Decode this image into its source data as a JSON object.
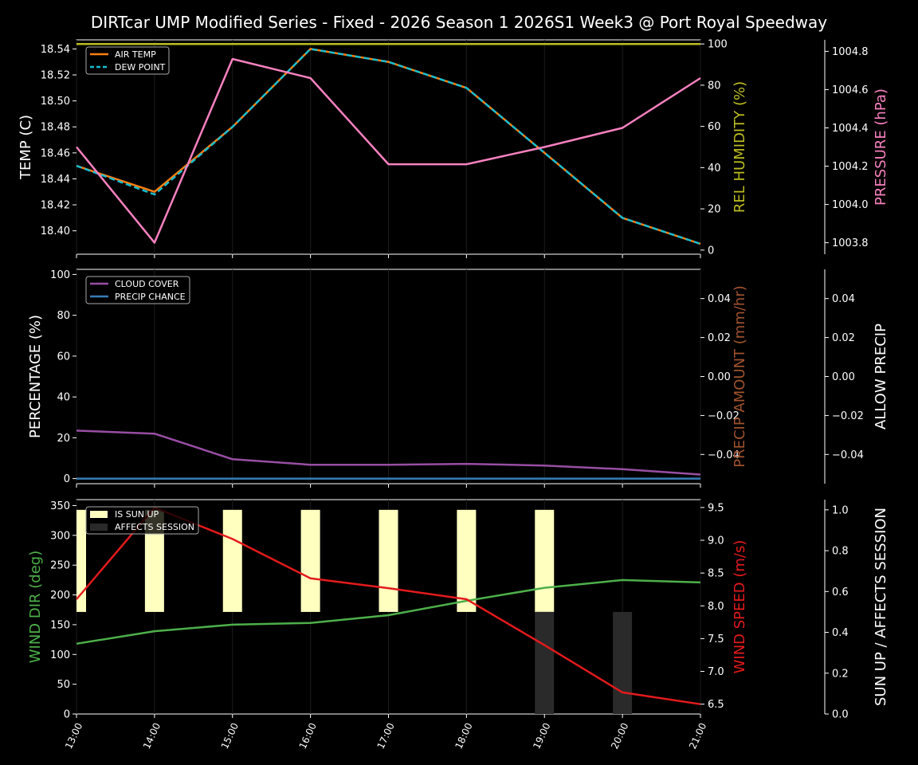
{
  "title": "DIRTcar UMP Modified Series - Fixed - 2026 Season 1 2026S1 Week3 @ Port Royal Speedway",
  "colors": {
    "background": "#000000",
    "foreground": "#ffffff",
    "air_temp": "#ff7f0e",
    "dew_point": "#17becf",
    "humidity": "#bcbd22",
    "pressure": "#f781bf",
    "cloud": "#984ea3",
    "precip_chance": "#377eb8",
    "precip_amount": "#a0522d",
    "wind_dir": "#4daf4a",
    "wind_speed": "#e41a1c",
    "sun_up": "#ffffc0",
    "affects_session": "#2a2a2a"
  },
  "chart_data": [
    {
      "type": "line",
      "panel": "weather",
      "x": [
        "13:00",
        "14:00",
        "15:00",
        "16:00",
        "17:00",
        "18:00",
        "19:00",
        "20:00",
        "21:00"
      ],
      "ylabel": "TEMP (C)",
      "ylabel_right": "REL HUMIDITY (%)",
      "ylabel_far_right": "PRESSURE (hPa)",
      "ylim": [
        18.382,
        18.547
      ],
      "ylim_right": [
        -2,
        102
      ],
      "ylim_far_right": [
        1003.74,
        1004.86
      ],
      "yticks": [
        "18.40",
        "18.42",
        "18.44",
        "18.46",
        "18.48",
        "18.50",
        "18.52",
        "18.54"
      ],
      "yticks_right": [
        "0",
        "20",
        "40",
        "60",
        "80",
        "100"
      ],
      "yticks_far_right": [
        "1003.8",
        "1004.0",
        "1004.2",
        "1004.4",
        "1004.6",
        "1004.8"
      ],
      "legend": "top-left",
      "series": [
        {
          "name": "AIR TEMP",
          "axis": "left",
          "values": [
            18.45,
            18.43,
            18.48,
            18.54,
            18.53,
            18.51,
            18.46,
            18.41,
            18.39
          ]
        },
        {
          "name": "DEW POINT",
          "axis": "left",
          "dashed": true,
          "values": [
            18.45,
            18.428,
            18.48,
            18.54,
            18.53,
            18.51,
            18.46,
            18.41,
            18.39
          ]
        },
        {
          "axis": "right",
          "values": [
            100,
            100,
            100,
            100,
            100,
            100,
            100,
            100,
            100
          ]
        },
        {
          "axis": "far_right",
          "values": [
            1004.3,
            1003.8,
            1004.76,
            1004.66,
            1004.21,
            1004.21,
            1004.3,
            1004.4,
            1004.66
          ]
        }
      ]
    },
    {
      "type": "line",
      "panel": "clouds",
      "x": [
        "13:00",
        "14:00",
        "15:00",
        "16:00",
        "17:00",
        "18:00",
        "19:00",
        "20:00",
        "21:00"
      ],
      "ylabel": "PERCENTAGE (%)",
      "ylabel_right": "PRECIP AMOUNT (mm/hr)",
      "ylabel_far_right": "ALLOW PRECIP",
      "ylim": [
        -2.5,
        102.5
      ],
      "ylim_right": [
        -0.055,
        0.055
      ],
      "ylim_far_right": [
        -0.055,
        0.055
      ],
      "yticks": [
        "0",
        "20",
        "40",
        "60",
        "80",
        "100"
      ],
      "yticks_right": [
        "−0.04",
        "−0.02",
        "0.00",
        "0.02",
        "0.04"
      ],
      "yticks_far_right": [
        "−0.04",
        "−0.02",
        "0.00",
        "0.02",
        "0.04"
      ],
      "legend": "top-left",
      "series": [
        {
          "name": "CLOUD COVER",
          "axis": "left",
          "values": [
            23.5,
            22,
            9.5,
            6.8,
            6.8,
            7.2,
            6.4,
            4.6,
            2
          ]
        },
        {
          "name": "PRECIP CHANCE",
          "axis": "left",
          "values": [
            0,
            0,
            0,
            0,
            0,
            0,
            0,
            0,
            0
          ]
        }
      ]
    },
    {
      "type": "line",
      "panel": "wind",
      "x": [
        "13:00",
        "14:00",
        "15:00",
        "16:00",
        "17:00",
        "18:00",
        "19:00",
        "20:00",
        "21:00"
      ],
      "ylabel": "WIND DIR (deg)",
      "ylabel_right": "WIND SPEED (m/s)",
      "ylabel_far_right": "SUN UP / AFFECTS SESSION",
      "ylim": [
        0,
        360
      ],
      "ylim_right": [
        6.35,
        9.62
      ],
      "ylim_far_right": [
        0,
        1.05
      ],
      "yticks": [
        "0",
        "50",
        "100",
        "150",
        "200",
        "250",
        "300",
        "350"
      ],
      "yticks_right": [
        "6.5",
        "7.0",
        "7.5",
        "8.0",
        "8.5",
        "9.0",
        "9.5"
      ],
      "yticks_far_right": [
        "0.0",
        "0.2",
        "0.4",
        "0.6",
        "0.8",
        "1.0"
      ],
      "legend": "top-left",
      "bars": [
        {
          "name": "IS SUN UP",
          "bottom": 0.5,
          "values": [
            0.5,
            0.5,
            0.5,
            0.5,
            0.5,
            0.5,
            0.5,
            0,
            0
          ]
        },
        {
          "name": "AFFECTS SESSION",
          "bottom": 0,
          "values": [
            0,
            0,
            0,
            0,
            0,
            0,
            0.5,
            0.5,
            0
          ]
        }
      ],
      "series": [
        {
          "axis": "left",
          "values": [
            118,
            139,
            150,
            153,
            166,
            190,
            212,
            225,
            221
          ]
        },
        {
          "axis": "right",
          "values": [
            8.1,
            9.5,
            9.02,
            8.42,
            8.27,
            8.1,
            7.4,
            6.68,
            6.5
          ]
        }
      ]
    }
  ]
}
